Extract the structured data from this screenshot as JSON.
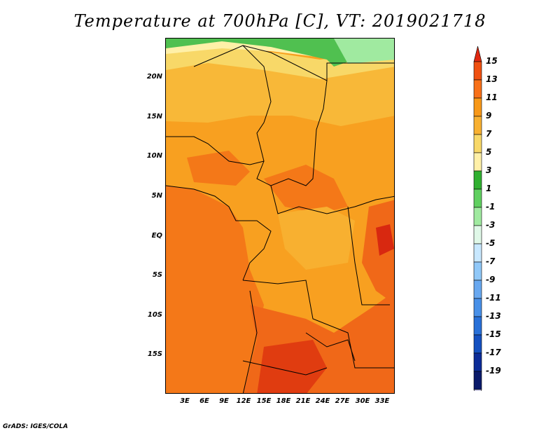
{
  "title": "Temperature at 700hPa [C], VT: 2019021718",
  "credit": "GrADS: IGES/COLA",
  "map": {
    "lon_range": [
      0,
      35
    ],
    "lat_range": [
      -20,
      25
    ],
    "lat_ticks": [
      {
        "lat": 20,
        "label": "20N"
      },
      {
        "lat": 15,
        "label": "15N"
      },
      {
        "lat": 10,
        "label": "10N"
      },
      {
        "lat": 5,
        "label": "5N"
      },
      {
        "lat": 0,
        "label": "EQ"
      },
      {
        "lat": -5,
        "label": "5S"
      },
      {
        "lat": -10,
        "label": "10S"
      },
      {
        "lat": -15,
        "label": "15S"
      }
    ],
    "lon_ticks": [
      {
        "lon": 3,
        "label": "3E"
      },
      {
        "lon": 6,
        "label": "6E"
      },
      {
        "lon": 9,
        "label": "9E"
      },
      {
        "lon": 12,
        "label": "12E"
      },
      {
        "lon": 15,
        "label": "15E"
      },
      {
        "lon": 18,
        "label": "18E"
      },
      {
        "lon": 21,
        "label": "21E"
      },
      {
        "lon": 24,
        "label": "24E"
      },
      {
        "lon": 27,
        "label": "27E"
      },
      {
        "lon": 30,
        "label": "30E"
      },
      {
        "lon": 33,
        "label": "33E"
      }
    ]
  },
  "colorbar": {
    "labels": [
      "15",
      "13",
      "11",
      "9",
      "7",
      "5",
      "3",
      "1",
      "-1",
      "-3",
      "-5",
      "-7",
      "-9",
      "-11",
      "-13",
      "-15",
      "-17",
      "-19"
    ],
    "colors": [
      "#e02810",
      "#f05010",
      "#f87018",
      "#f89818",
      "#f8b030",
      "#f8d868",
      "#fff0a8",
      "#30b030",
      "#60d060",
      "#a0eaa0",
      "#e0f8e8",
      "#c8e8ff",
      "#90c8f8",
      "#68a8f0",
      "#4890e8",
      "#2870d8",
      "#1450c0",
      "#0c2c98",
      "#0a1a6a",
      "#d8d8f0"
    ]
  }
}
